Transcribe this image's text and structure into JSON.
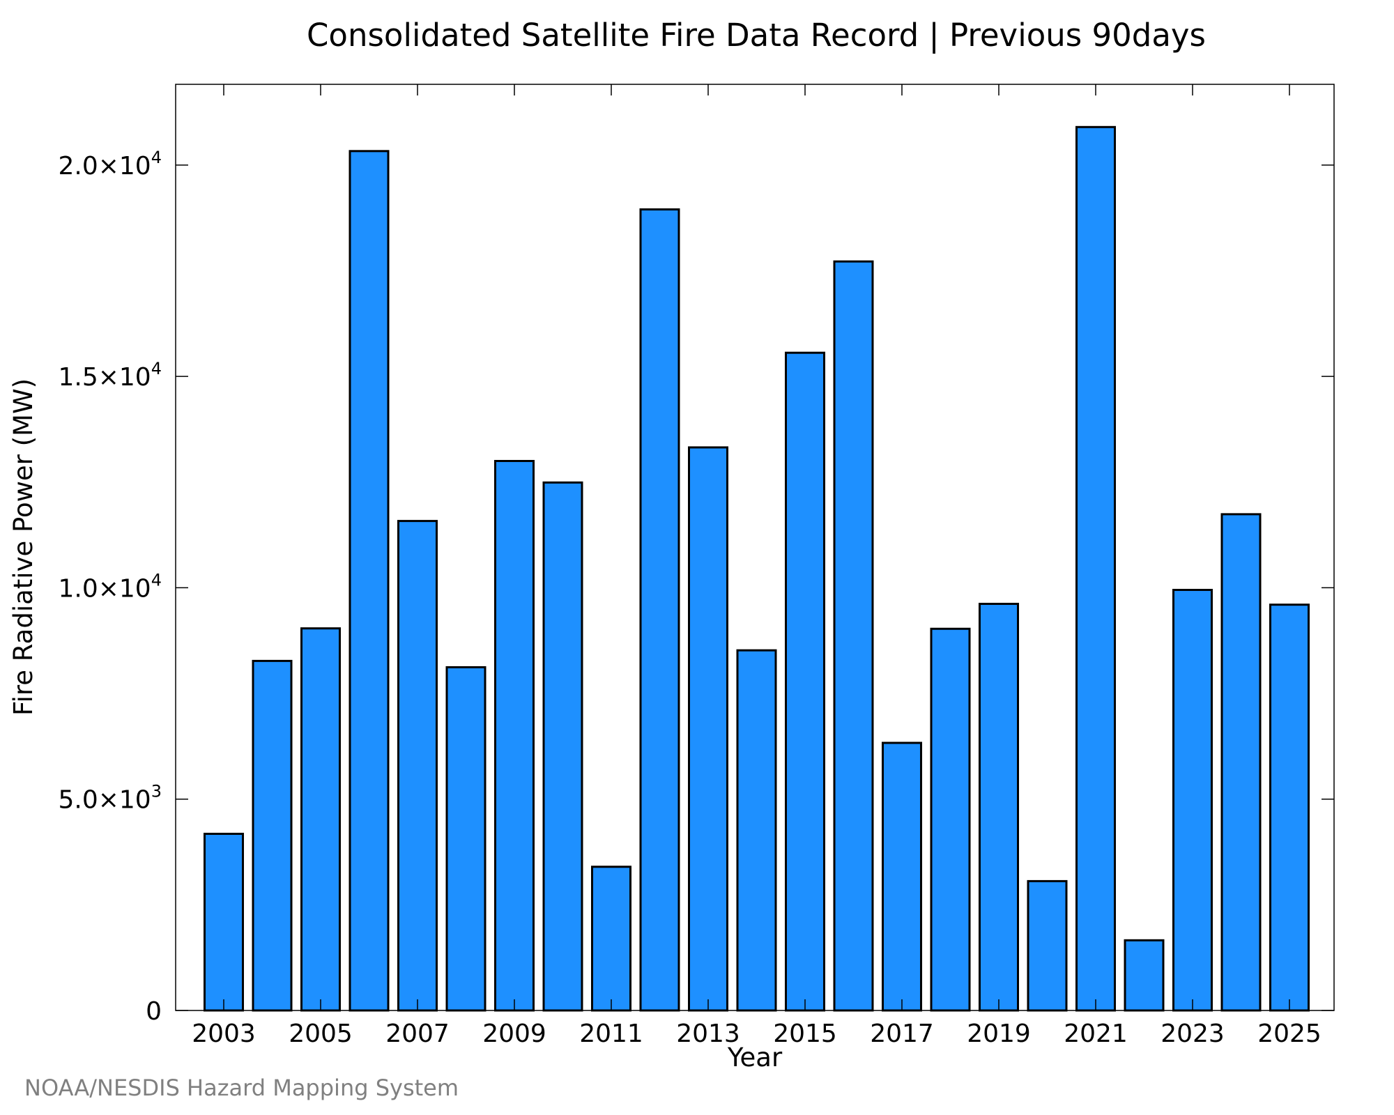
{
  "credit": "NOAA/NESDIS Hazard Mapping System",
  "colors": {
    "bar_fill": "#1e90ff",
    "bar_stroke": "#000000",
    "credit_text": "#808080"
  },
  "chart_data": {
    "type": "bar",
    "title": "Consolidated Satellite Fire Data Record | Previous 90days",
    "xlabel": "Year",
    "ylabel": "Fire Radiative Power (MW)",
    "categories": [
      "2003",
      "2004",
      "2005",
      "2006",
      "2007",
      "2008",
      "2009",
      "2010",
      "2011",
      "2012",
      "2013",
      "2014",
      "2015",
      "2016",
      "2017",
      "2018",
      "2019",
      "2020",
      "2021",
      "2022",
      "2023",
      "2024",
      "2025"
    ],
    "values": [
      4180,
      8270,
      9040,
      20330,
      11580,
      8120,
      13000,
      12490,
      3400,
      18950,
      13320,
      8520,
      15560,
      17720,
      6330,
      9030,
      9620,
      3060,
      20900,
      1660,
      9950,
      11740,
      9600
    ],
    "x_tick_labels": [
      "2003",
      "2005",
      "2007",
      "2009",
      "2011",
      "2013",
      "2015",
      "2017",
      "2019",
      "2021",
      "2023",
      "2025"
    ],
    "y_ticks": [
      {
        "value": 0,
        "mantissa": "0",
        "exponent": ""
      },
      {
        "value": 5000,
        "mantissa": "5.0×10",
        "exponent": "3"
      },
      {
        "value": 10000,
        "mantissa": "1.0×10",
        "exponent": "4"
      },
      {
        "value": 15000,
        "mantissa": "1.5×10",
        "exponent": "4"
      },
      {
        "value": 20000,
        "mantissa": "2.0×10",
        "exponent": "4"
      }
    ],
    "ylim": [
      0,
      21910
    ],
    "grid": false,
    "legend": "none"
  }
}
